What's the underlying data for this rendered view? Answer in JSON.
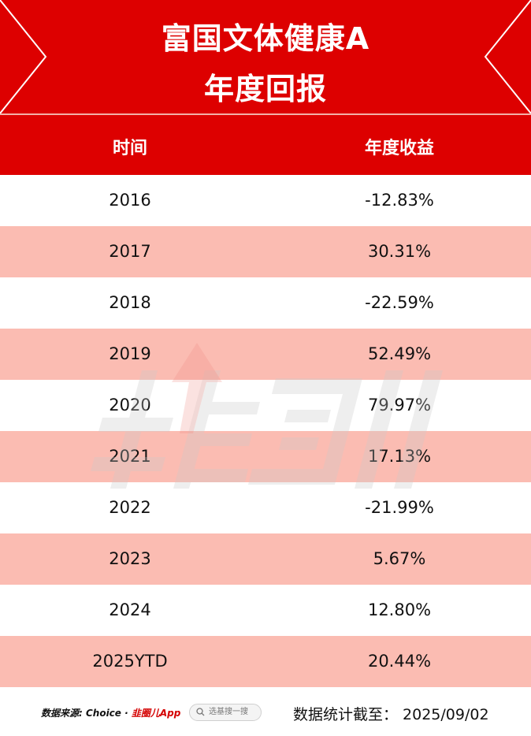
{
  "title": {
    "line1": "富国文体健康A",
    "line2": "年度回报"
  },
  "table": {
    "headers": [
      "时间",
      "年度收益"
    ],
    "rows": [
      {
        "year": "2016",
        "return": "-12.83%"
      },
      {
        "year": "2017",
        "return": "30.31%"
      },
      {
        "year": "2018",
        "return": "-22.59%"
      },
      {
        "year": "2019",
        "return": "52.49%"
      },
      {
        "year": "2020",
        "return": "79.97%"
      },
      {
        "year": "2021",
        "return": "17.13%"
      },
      {
        "year": "2022",
        "return": "-21.99%"
      },
      {
        "year": "2023",
        "return": "5.67%"
      },
      {
        "year": "2024",
        "return": "12.80%"
      },
      {
        "year": "2025YTD",
        "return": "20.44%"
      }
    ]
  },
  "footer": {
    "source_label": "数据来源: Choice · ",
    "brand": "韭圈儿App",
    "search_placeholder": "选基搜一搜",
    "stat_date": "数据统计截至： 2025/09/02"
  },
  "colors": {
    "red": "#dd0000",
    "pink_row": "#fbbcb2"
  },
  "icons": [
    "search-icon",
    "watermark-logo"
  ]
}
